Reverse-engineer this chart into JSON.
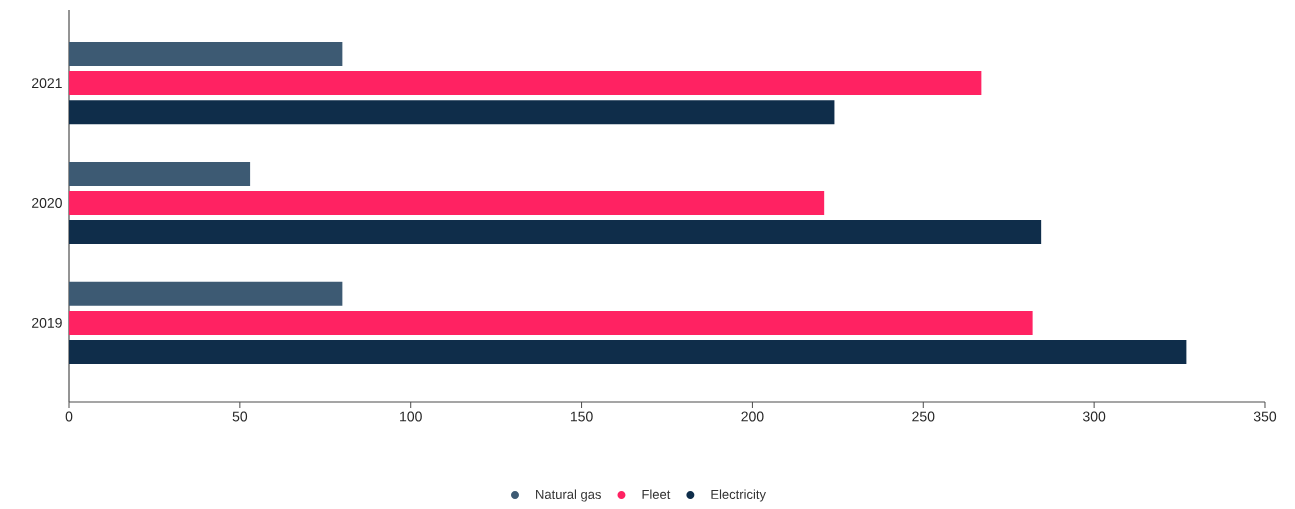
{
  "chart_data": {
    "type": "bar",
    "orientation": "horizontal",
    "categories": [
      "2021",
      "2020",
      "2019"
    ],
    "series": [
      {
        "name": "Natural gas",
        "color": "#3d5a73",
        "values": [
          80,
          53,
          80
        ]
      },
      {
        "name": "Fleet",
        "color": "#ff2262",
        "values": [
          267,
          221,
          282
        ]
      },
      {
        "name": "Electricity",
        "color": "#0f2d4a",
        "values": [
          224,
          284.5,
          327
        ]
      }
    ],
    "xlim": [
      0,
      350
    ],
    "xticks": [
      0,
      50,
      100,
      150,
      200,
      250,
      300,
      350
    ],
    "grid": false,
    "legend": "bottom"
  }
}
